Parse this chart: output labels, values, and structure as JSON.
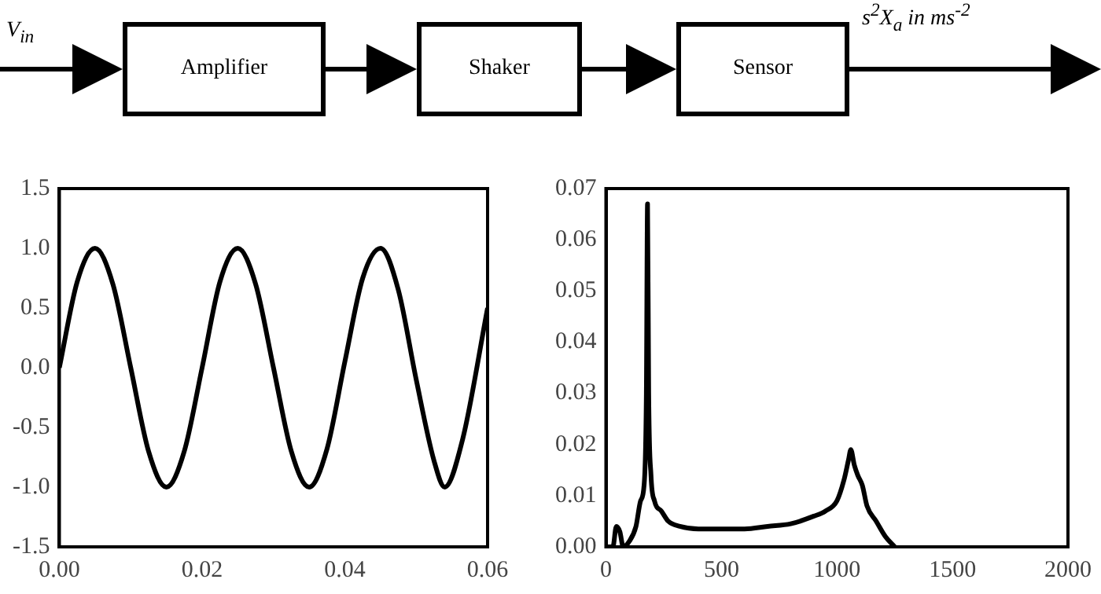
{
  "chart_data": [
    {
      "type": "other",
      "annotations": [
        "V$_{in}$",
        "Amplifier",
        "Shaker",
        "Sensor",
        "s$^{2}$X$_{a}$ in ms$^{-2}$"
      ]
    },
    {
      "type": "line",
      "x": [
        0,
        0.0025,
        0.005,
        0.0075,
        0.01,
        0.0125,
        0.015,
        0.0175,
        0.02,
        0.0225,
        0.025,
        0.0275,
        0.03,
        0.0325,
        0.035,
        0.0375,
        0.04,
        0.0425,
        0.045,
        0.0475,
        0.05,
        0.0525,
        0.054,
        0.0565,
        0.06
      ],
      "series": [
        {
          "color": "#000000",
          "values": [
            0.0,
            0.72,
            1.0,
            0.7,
            0.0,
            -0.7,
            -1.0,
            -0.7,
            0.0,
            0.72,
            1.0,
            0.7,
            0.0,
            -0.7,
            -1.0,
            -0.68,
            0.05,
            0.75,
            1.0,
            0.65,
            -0.1,
            -0.78,
            -1.0,
            -0.6,
            0.5
          ]
        }
      ],
      "xlim": [
        0,
        0.06
      ],
      "xticks": [
        {
          "value": 0,
          "label": "0.00"
        },
        {
          "value": 0.02,
          "label": "0.02"
        },
        {
          "value": 0.04,
          "label": "0.04"
        },
        {
          "value": 0.06,
          "label": "0.06"
        }
      ],
      "ylim": [
        -1.5,
        1.5
      ],
      "yticks": [
        {
          "value": -1.5,
          "label": "-1.5"
        },
        {
          "value": -1,
          "label": "-1.0"
        },
        {
          "value": -0.5,
          "label": "-0.5"
        },
        {
          "value": 0,
          "label": "0.0"
        },
        {
          "value": 0.5,
          "label": "0.5"
        },
        {
          "value": 1,
          "label": "1.0"
        },
        {
          "value": 1.5,
          "label": "1.5"
        }
      ]
    },
    {
      "type": "line",
      "x": [
        0,
        30,
        45,
        60,
        75,
        100,
        130,
        150,
        165,
        175,
        180,
        185,
        195,
        210,
        240,
        270,
        320,
        400,
        500,
        600,
        700,
        800,
        900,
        950,
        1000,
        1030,
        1050,
        1060,
        1075,
        1090,
        1110,
        1130,
        1170,
        1210,
        1250
      ],
      "series": [
        {
          "color": "#000000",
          "values": [
            0.0,
            0.0,
            0.004,
            0.003,
            0.0,
            0.001,
            0.004,
            0.009,
            0.012,
            0.03,
            0.067,
            0.03,
            0.014,
            0.009,
            0.007,
            0.005,
            0.004,
            0.0035,
            0.0035,
            0.0035,
            0.004,
            0.0045,
            0.006,
            0.007,
            0.009,
            0.013,
            0.017,
            0.019,
            0.016,
            0.014,
            0.012,
            0.008,
            0.005,
            0.002,
            0.0
          ]
        }
      ],
      "xlim": [
        0,
        2000
      ],
      "xticks": [
        0,
        500,
        1000,
        1500,
        2000
      ],
      "ylim": [
        0,
        0.07
      ],
      "yticks": [
        {
          "value": 0,
          "label": "0.00"
        },
        {
          "value": 0.01,
          "label": "0.01"
        },
        {
          "value": 0.02,
          "label": "0.02"
        },
        {
          "value": 0.03,
          "label": "0.03"
        },
        {
          "value": 0.04,
          "label": "0.04"
        },
        {
          "value": 0.05,
          "label": "0.05"
        },
        {
          "value": 0.06,
          "label": "0.06"
        },
        {
          "value": 0.07,
          "label": "0.07"
        }
      ]
    }
  ]
}
